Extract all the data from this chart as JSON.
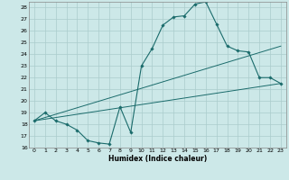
{
  "title": "",
  "xlabel": "Humidex (Indice chaleur)",
  "xlim": [
    -0.5,
    23.5
  ],
  "ylim": [
    16,
    28.5
  ],
  "xticks": [
    0,
    1,
    2,
    3,
    4,
    5,
    6,
    7,
    8,
    9,
    10,
    11,
    12,
    13,
    14,
    15,
    16,
    17,
    18,
    19,
    20,
    21,
    22,
    23
  ],
  "yticks": [
    16,
    17,
    18,
    19,
    20,
    21,
    22,
    23,
    24,
    25,
    26,
    27,
    28
  ],
  "bg_color": "#cce8e8",
  "grid_color": "#aacccc",
  "line_color": "#1a6b6b",
  "line1_x": [
    0,
    1,
    2,
    3,
    4,
    5,
    6,
    7,
    8,
    9,
    10,
    11,
    12,
    13,
    14,
    15,
    16,
    17,
    18,
    19,
    20,
    21,
    22,
    23
  ],
  "line1_y": [
    18.3,
    19.0,
    18.3,
    18.0,
    17.5,
    16.6,
    16.4,
    16.3,
    19.5,
    17.3,
    23.0,
    24.5,
    26.5,
    27.2,
    27.3,
    28.3,
    28.5,
    26.6,
    24.7,
    24.3,
    24.2,
    22.0,
    22.0,
    21.5
  ],
  "line2_x": [
    0,
    23
  ],
  "line2_y": [
    18.3,
    21.5
  ],
  "line3_x": [
    0,
    23
  ],
  "line3_y": [
    18.3,
    24.7
  ]
}
